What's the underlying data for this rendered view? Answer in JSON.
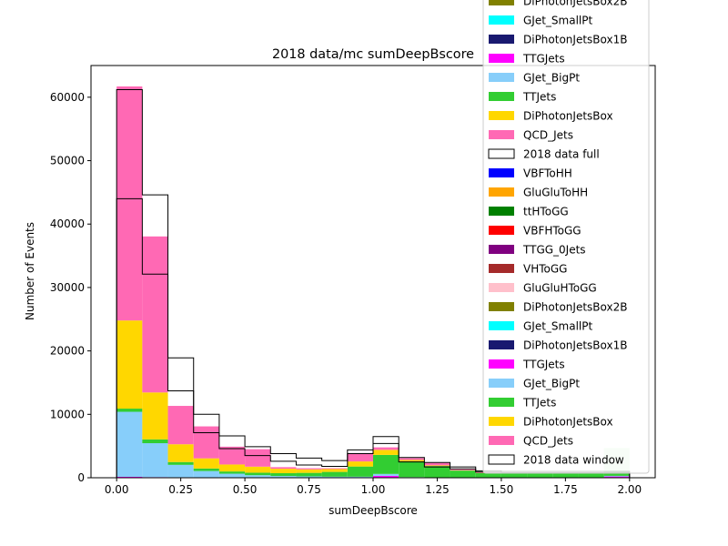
{
  "chart_data": {
    "type": "bar",
    "title": "2018 data/mc sumDeepBscore",
    "xlabel": "sumDeepBscore",
    "ylabel": "Number of Events",
    "xlim": [
      -0.1,
      2.1
    ],
    "ylim": [
      0,
      65000
    ],
    "grid": false,
    "legend_placement": "top-right",
    "bin_edges": [
      0.0,
      0.1,
      0.2,
      0.3,
      0.4,
      0.5,
      0.6,
      0.7,
      0.8,
      0.9,
      1.0,
      1.1,
      1.2,
      1.3,
      1.4,
      1.5,
      1.6,
      1.7,
      1.8,
      1.9,
      2.0
    ],
    "x_ticks": [
      "0.00",
      "0.25",
      "0.50",
      "0.75",
      "1.00",
      "1.25",
      "1.50",
      "1.75",
      "2.00"
    ],
    "x_tick_values": [
      0,
      0.25,
      0.5,
      0.75,
      1.0,
      1.25,
      1.5,
      1.75,
      2.0
    ],
    "y_ticks": [
      "0",
      "10000",
      "20000",
      "30000",
      "40000",
      "50000",
      "60000"
    ],
    "y_tick_values": [
      0,
      10000,
      20000,
      30000,
      40000,
      50000,
      60000
    ],
    "stacked_series": [
      {
        "name": "TTGJets",
        "color": "#ff00ff",
        "values": [
          150,
          100,
          80,
          60,
          40,
          30,
          20,
          20,
          20,
          20,
          300,
          20,
          10,
          5,
          5,
          5,
          5,
          5,
          5,
          200
        ]
      },
      {
        "name": "GJet_BigPt",
        "color": "#87cefa",
        "values": [
          10250,
          5350,
          1950,
          1000,
          600,
          370,
          250,
          200,
          150,
          150,
          300,
          80,
          40,
          30,
          20,
          20,
          20,
          20,
          20,
          100
        ]
      },
      {
        "name": "TTJets",
        "color": "#32cd32",
        "values": [
          500,
          600,
          450,
          400,
          350,
          400,
          450,
          550,
          750,
          1600,
          3000,
          2500,
          1800,
          1100,
          700,
          700,
          700,
          700,
          700,
          700
        ]
      },
      {
        "name": "DiPhotonJetsBox",
        "color": "#ffd700",
        "values": [
          13900,
          7400,
          2800,
          1600,
          1100,
          950,
          700,
          550,
          450,
          800,
          800,
          200,
          100,
          50,
          40,
          30,
          30,
          30,
          30,
          30
        ]
      },
      {
        "name": "QCD_Jets",
        "color": "#ff69b4",
        "values": [
          36900,
          24600,
          6050,
          5040,
          2810,
          2750,
          250,
          180,
          130,
          1330,
          390,
          300,
          400,
          150,
          100,
          50,
          50,
          50,
          50,
          50
        ]
      }
    ],
    "background_fill": {
      "name": "",
      "color": "#d6f5d6",
      "values": [
        0,
        0,
        0,
        0,
        0,
        0,
        0,
        0,
        0,
        0,
        0,
        0,
        0,
        0,
        0,
        0,
        0,
        0,
        0,
        4700
      ]
    },
    "step_series": [
      {
        "name": "2018 data full",
        "color": "#000000",
        "values": [
          61200,
          44600,
          18900,
          10000,
          6600,
          4900,
          3800,
          3100,
          2700,
          4400,
          6500,
          3200,
          2400,
          1700,
          1100,
          1000,
          1000,
          1000,
          1000,
          1000
        ]
      },
      {
        "name": "2018 data window",
        "color": "#000000",
        "values": [
          44000,
          32100,
          13700,
          7100,
          4600,
          3500,
          2600,
          2000,
          1800,
          3800,
          5400,
          2500,
          1700,
          1400,
          900,
          800,
          800,
          800,
          800,
          800
        ]
      }
    ],
    "legend_entries": [
      {
        "label": "DiPhotonJetsBox2B",
        "color": "#808000",
        "kind": "fill"
      },
      {
        "label": "GJet_SmallPt",
        "color": "#00ffff",
        "kind": "fill"
      },
      {
        "label": "DiPhotonJetsBox1B",
        "color": "#191970",
        "kind": "fill"
      },
      {
        "label": "TTGJets",
        "color": "#ff00ff",
        "kind": "fill"
      },
      {
        "label": "GJet_BigPt",
        "color": "#87cefa",
        "kind": "fill"
      },
      {
        "label": "TTJets",
        "color": "#32cd32",
        "kind": "fill"
      },
      {
        "label": "DiPhotonJetsBox",
        "color": "#ffd700",
        "kind": "fill"
      },
      {
        "label": "QCD_Jets",
        "color": "#ff69b4",
        "kind": "fill"
      },
      {
        "label": "2018 data full",
        "color": "#000000",
        "kind": "step"
      },
      {
        "label": "VBFToHH",
        "color": "#0000ff",
        "kind": "fill"
      },
      {
        "label": "GluGluToHH",
        "color": "#ffa500",
        "kind": "fill"
      },
      {
        "label": "ttHToGG",
        "color": "#008000",
        "kind": "fill"
      },
      {
        "label": "VBFHToGG",
        "color": "#ff0000",
        "kind": "fill"
      },
      {
        "label": "TTGG_0Jets",
        "color": "#800080",
        "kind": "fill"
      },
      {
        "label": "VHToGG",
        "color": "#a52a2a",
        "kind": "fill"
      },
      {
        "label": "GluGluHToGG",
        "color": "#ffc0cb",
        "kind": "fill"
      },
      {
        "label": "DiPhotonJetsBox2B",
        "color": "#808000",
        "kind": "fill"
      },
      {
        "label": "GJet_SmallPt",
        "color": "#00ffff",
        "kind": "fill"
      },
      {
        "label": "DiPhotonJetsBox1B",
        "color": "#191970",
        "kind": "fill"
      },
      {
        "label": "TTGJets",
        "color": "#ff00ff",
        "kind": "fill"
      },
      {
        "label": "GJet_BigPt",
        "color": "#87cefa",
        "kind": "fill"
      },
      {
        "label": "TTJets",
        "color": "#32cd32",
        "kind": "fill"
      },
      {
        "label": "DiPhotonJetsBox",
        "color": "#ffd700",
        "kind": "fill"
      },
      {
        "label": "QCD_Jets",
        "color": "#ff69b4",
        "kind": "fill"
      },
      {
        "label": "2018 data window",
        "color": "#000000",
        "kind": "step"
      }
    ]
  }
}
